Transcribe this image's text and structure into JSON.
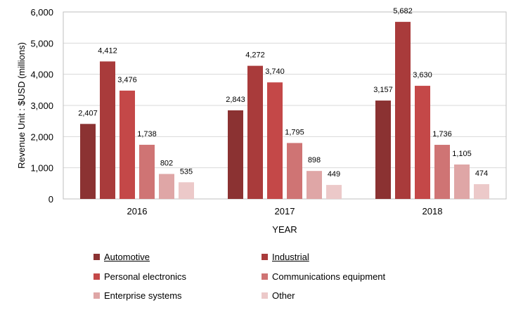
{
  "chart_data": {
    "type": "bar",
    "categories": [
      "2016",
      "2017",
      "2018"
    ],
    "series": [
      {
        "name": "Automotive",
        "values": [
          2407,
          2843,
          3157
        ],
        "color": "#8b3232",
        "labels": [
          "2,407",
          "2,843",
          "3,157"
        ]
      },
      {
        "name": "Industrial",
        "values": [
          4412,
          4272,
          5682
        ],
        "color": "#a93b3b",
        "labels": [
          "4,412",
          "4,272",
          "5,682"
        ]
      },
      {
        "name": "Personal electronics",
        "values": [
          3476,
          3740,
          3630
        ],
        "color": "#c44848",
        "labels": [
          "3,476",
          "3,740",
          "3,630"
        ]
      },
      {
        "name": "Communications equipment",
        "values": [
          1738,
          1795,
          1736
        ],
        "color": "#cf7474",
        "labels": [
          "1,738",
          "1,795",
          "1,736"
        ]
      },
      {
        "name": "Enterprise systems",
        "values": [
          802,
          898,
          1105
        ],
        "color": "#dfa6a6",
        "labels": [
          "802",
          "898",
          "1,105"
        ]
      },
      {
        "name": "Other",
        "values": [
          535,
          449,
          474
        ],
        "color": "#ecc9c9",
        "labels": [
          "535",
          "449",
          "474"
        ]
      }
    ],
    "xlabel": "YEAR",
    "ylabel": "Revenue Unit : $USD (millions)",
    "ylim": [
      0,
      6000
    ],
    "yticks": [
      "0",
      "1,000",
      "2,000",
      "3,000",
      "4,000",
      "5,000",
      "6,000"
    ],
    "grid": true,
    "legend_position": "bottom",
    "legend_underlined": [
      "Automotive",
      "Industrial"
    ]
  }
}
